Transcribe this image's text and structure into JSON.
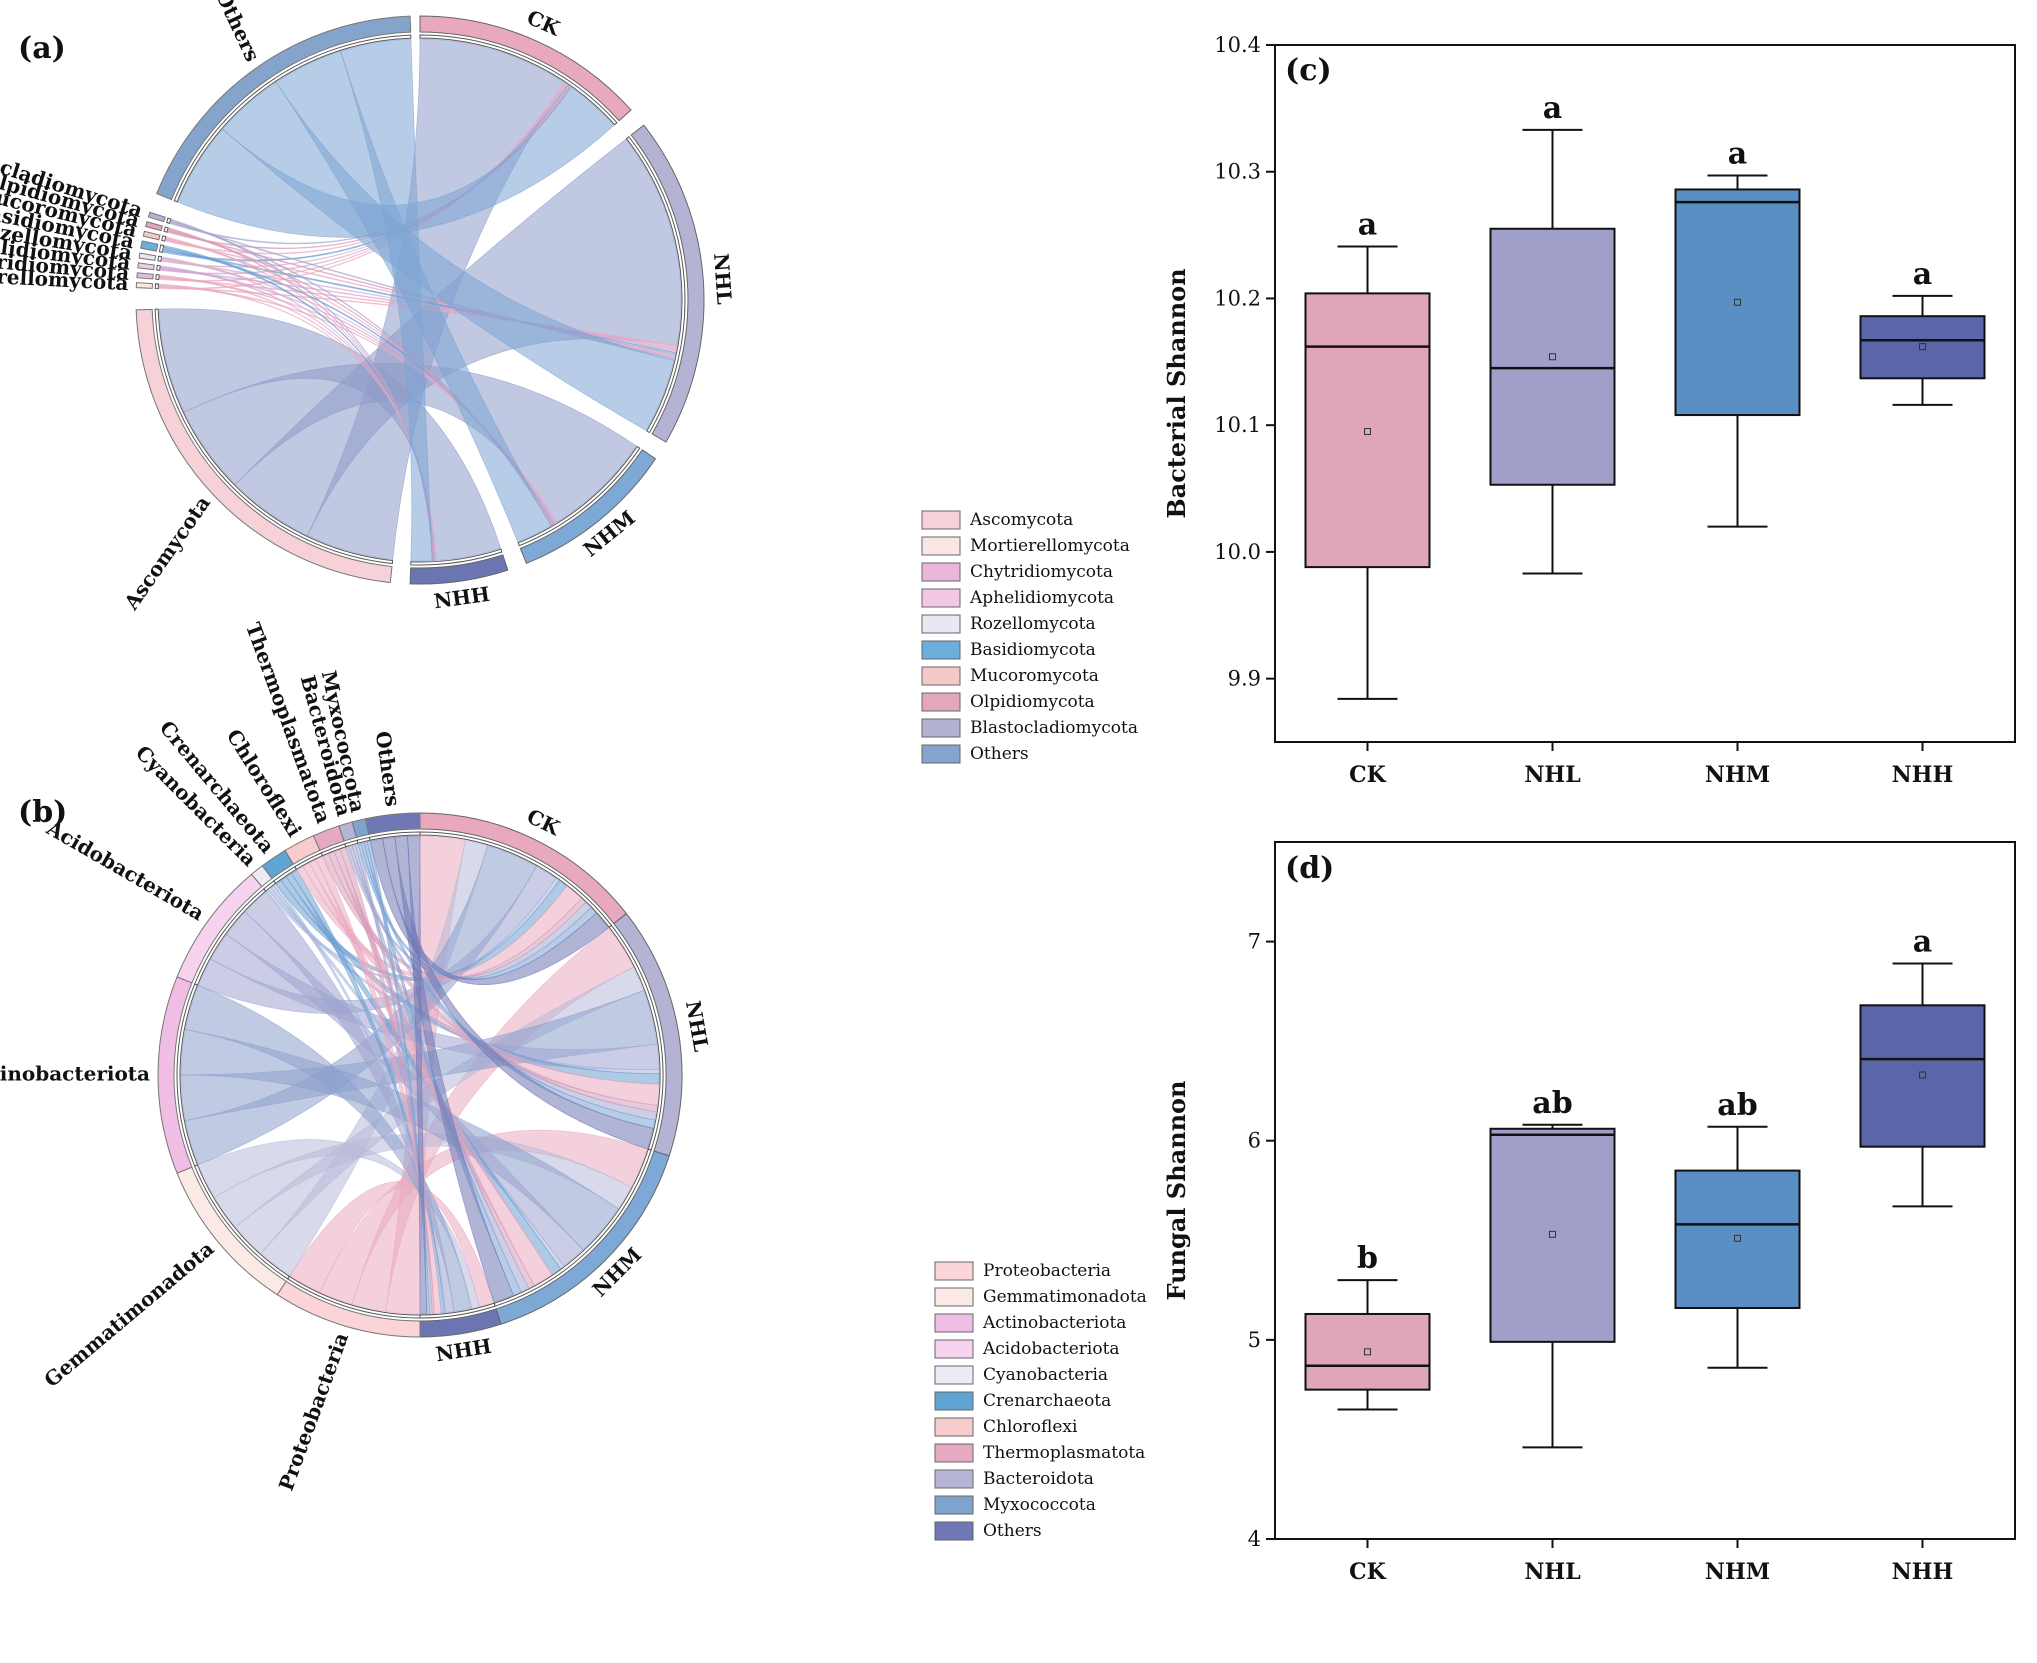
{
  "panels": {
    "a": "(a)",
    "b": "(b)",
    "c": "(c)",
    "d": "(d)"
  },
  "chart_data": [
    {
      "id": "chord-a",
      "type": "chord",
      "panel": "(a)",
      "groups": [
        "CK",
        "NHL",
        "NHM",
        "NHH"
      ],
      "taxa": [
        "Ascomycota",
        "Mortierellomycota",
        "Chytridiomycota",
        "Aphelidiomycota",
        "Rozellomycota",
        "Basidiomycota",
        "Mucoromycota",
        "Olpidiomycota",
        "Blastocladiomycota",
        "Others"
      ],
      "legend": [
        "Ascomycota",
        "Mortierellomycota",
        "Chytridiomycota",
        "Aphelidiomycota",
        "Rozellomycota",
        "Basidiomycota",
        "Mucoromycota",
        "Olpidiomycota",
        "Blastocladiomycota",
        "Others"
      ],
      "colors": [
        "#f6d2d8",
        "#fae6e4",
        "#eab6dc",
        "#f3c7e6",
        "#e9e7f3",
        "#6baedb",
        "#f6c9c9",
        "#e2a6bd",
        "#b2b2d2",
        "#84a4cc"
      ]
    },
    {
      "id": "chord-b",
      "type": "chord",
      "panel": "(b)",
      "groups": [
        "CK",
        "NHL",
        "NHM",
        "NHH"
      ],
      "taxa": [
        "Proteobacteria",
        "Gemmatimonadota",
        "Actinobacteriota",
        "Acidobacteriota",
        "Cyanobacteria",
        "Crenarchaeota",
        "Chloroflexi",
        "Thermoplasmatota",
        "Bacteroidota",
        "Myxococcota",
        "Others"
      ],
      "legend": [
        "Proteobacteria",
        "Gemmatimonadota",
        "Actinobacteriota",
        "Acidobacteriota",
        "Cyanobacteria",
        "Crenarchaeota",
        "Chloroflexi",
        "Thermoplasmatota",
        "Bacteroidota",
        "Myxococcota",
        "Others"
      ],
      "colors": [
        "#fad4d6",
        "#fbe9e6",
        "#f0bde4",
        "#f7d2ee",
        "#ecebf5",
        "#5fa4d3",
        "#f7cccc",
        "#e5a9c2",
        "#b6b5d6",
        "#7ea3cf",
        "#6f78b5"
      ]
    },
    {
      "id": "box-c",
      "type": "box",
      "panel": "(c)",
      "categories": [
        "CK",
        "NHL",
        "NHM",
        "NHH"
      ],
      "ylabel": "Bacterial Shannon",
      "ylim": [
        9.85,
        10.4
      ],
      "yticks": [
        "9.9",
        "10.0",
        "10.1",
        "10.2",
        "10.3",
        "10.4"
      ],
      "boxes": [
        {
          "min": 9.884,
          "q1": 9.988,
          "median": 10.162,
          "q3": 10.204,
          "max": 10.241,
          "mean": 10.095,
          "letter": "a"
        },
        {
          "min": 9.983,
          "q1": 10.053,
          "median": 10.145,
          "q3": 10.255,
          "max": 10.333,
          "mean": 10.154,
          "letter": "a"
        },
        {
          "min": 10.02,
          "q1": 10.108,
          "median": 10.276,
          "q3": 10.286,
          "max": 10.297,
          "mean": 10.197,
          "letter": "a"
        },
        {
          "min": 10.116,
          "q1": 10.137,
          "median": 10.167,
          "q3": 10.186,
          "max": 10.202,
          "mean": 10.162,
          "letter": "a"
        }
      ],
      "colors": [
        "#dea6b7",
        "#a09fca",
        "#5a8fc4",
        "#5b66a8"
      ]
    },
    {
      "id": "box-d",
      "type": "box",
      "panel": "(d)",
      "categories": [
        "CK",
        "NHL",
        "NHM",
        "NHH"
      ],
      "ylabel": "Fungal Shannon",
      "ylim": [
        4,
        7.5
      ],
      "yticks": [
        "4",
        "5",
        "6",
        "7"
      ],
      "boxes": [
        {
          "min": 4.65,
          "q1": 4.75,
          "median": 4.87,
          "q3": 5.13,
          "max": 5.3,
          "mean": 4.94,
          "letter": "b"
        },
        {
          "min": 4.46,
          "q1": 4.99,
          "median": 6.03,
          "q3": 6.06,
          "max": 6.08,
          "mean": 5.53,
          "letter": "ab"
        },
        {
          "min": 4.86,
          "q1": 5.16,
          "median": 5.58,
          "q3": 5.85,
          "max": 6.07,
          "mean": 5.51,
          "letter": "ab"
        },
        {
          "min": 5.67,
          "q1": 5.97,
          "median": 6.41,
          "q3": 6.68,
          "max": 6.89,
          "mean": 6.33,
          "letter": "a"
        }
      ],
      "colors": [
        "#dea6b7",
        "#a09fca",
        "#5a8fc4",
        "#5b66a8"
      ]
    }
  ]
}
